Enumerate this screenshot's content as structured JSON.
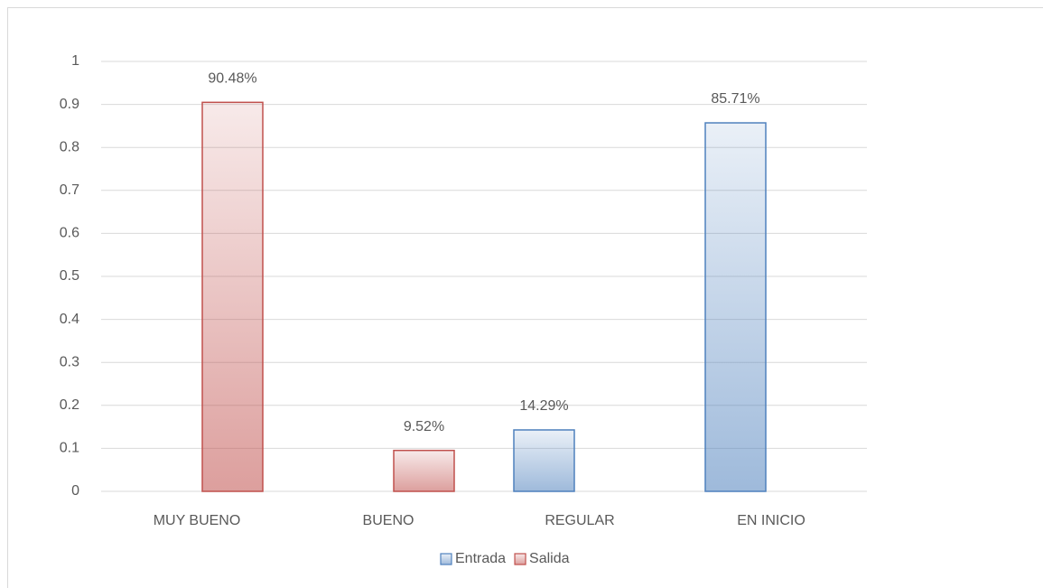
{
  "chart_data": {
    "type": "bar",
    "categories": [
      "MUY BUENO",
      "BUENO",
      "REGULAR",
      "EN INICIO"
    ],
    "series": [
      {
        "name": "Entrada",
        "color": "#4f81bd",
        "values": [
          null,
          null,
          0.1429,
          0.8571
        ],
        "value_labels": [
          null,
          null,
          "14.29%",
          "85.71%"
        ]
      },
      {
        "name": "Salida",
        "color": "#c0504d",
        "values": [
          0.9048,
          0.0952,
          null,
          null
        ],
        "value_labels": [
          "90.48%",
          "9.52%",
          null,
          null
        ]
      }
    ],
    "ylim": [
      0,
      1
    ],
    "yticks": [
      0,
      0.1,
      0.2,
      0.3,
      0.4,
      0.5,
      0.6,
      0.7,
      0.8,
      0.9,
      1
    ],
    "grid": true,
    "legend": "bottom"
  }
}
